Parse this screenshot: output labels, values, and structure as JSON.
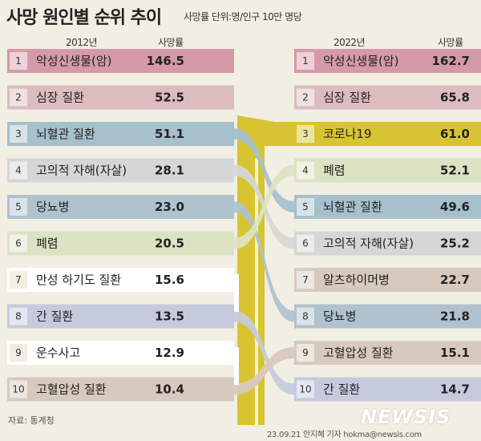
{
  "title": "사망 원인별 순위 추이",
  "subtitle": "사망률 단위:명/인구 10만 명당",
  "headers": {
    "left_year": "2012년",
    "left_value": "사망률",
    "right_year": "2022년",
    "right_value": "사망률"
  },
  "source": "자료: 통계청",
  "credit": "23.09.21 안지혜 기자 hokma@newsis.com",
  "logo": "NEWSIS",
  "chart_data": {
    "type": "slope",
    "value_label": "사망률",
    "unit": "명/인구 10만 명당",
    "left": {
      "year": "2012년",
      "rows": [
        {
          "rank": "1",
          "name": "악성신생물(암)",
          "value": "146.5",
          "color": "#d59aa8"
        },
        {
          "rank": "2",
          "name": "심장 질환",
          "value": "52.5",
          "color": "#dcbcbe"
        },
        {
          "rank": "3",
          "name": "뇌혈관 질환",
          "value": "51.1",
          "color": "#a6c0cc"
        },
        {
          "rank": "4",
          "name": "고의적 자해(자살)",
          "value": "28.1",
          "color": "#d6d6d6"
        },
        {
          "rank": "5",
          "name": "당뇨병",
          "value": "23.0",
          "color": "#afc2ce"
        },
        {
          "rank": "6",
          "name": "폐렴",
          "value": "20.5",
          "color": "#dce3c3"
        },
        {
          "rank": "7",
          "name": "만성 하기도 질환",
          "value": "15.6",
          "color": "#ffffff"
        },
        {
          "rank": "8",
          "name": "간 질환",
          "value": "13.5",
          "color": "#c5cbdd"
        },
        {
          "rank": "9",
          "name": "운수사고",
          "value": "12.9",
          "color": "#ffffff"
        },
        {
          "rank": "10",
          "name": "고혈압성 질환",
          "value": "10.4",
          "color": "#d7c9bd"
        }
      ]
    },
    "right": {
      "year": "2022년",
      "rows": [
        {
          "rank": "1",
          "name": "악성신생물(암)",
          "value": "162.7",
          "color": "#d59aa8"
        },
        {
          "rank": "2",
          "name": "심장 질환",
          "value": "65.8",
          "color": "#dcbcbe"
        },
        {
          "rank": "3",
          "name": "코로나19",
          "value": "61.0",
          "color": "#d8c430"
        },
        {
          "rank": "4",
          "name": "폐렴",
          "value": "52.1",
          "color": "#dce3c3"
        },
        {
          "rank": "5",
          "name": "뇌혈관 질환",
          "value": "49.6",
          "color": "#a6c0cc"
        },
        {
          "rank": "6",
          "name": "고의적 자해(자살)",
          "value": "25.2",
          "color": "#d6d6d6"
        },
        {
          "rank": "7",
          "name": "알츠하이머병",
          "value": "22.7",
          "color": "#d7c9bd"
        },
        {
          "rank": "8",
          "name": "당뇨병",
          "value": "21.8",
          "color": "#afc2ce"
        },
        {
          "rank": "9",
          "name": "고혈압성 질환",
          "value": "15.1",
          "color": "#d7c9bd"
        },
        {
          "rank": "10",
          "name": "간 질환",
          "value": "14.7",
          "color": "#c5cbdd"
        }
      ]
    },
    "links": [
      {
        "from": 1,
        "to": 1
      },
      {
        "from": 2,
        "to": 2
      },
      {
        "from": 3,
        "to": 5
      },
      {
        "from": 4,
        "to": 6
      },
      {
        "from": 5,
        "to": 8
      },
      {
        "from": 6,
        "to": 4
      },
      {
        "from": 7,
        "to": null
      },
      {
        "from": 8,
        "to": 10
      },
      {
        "from": 9,
        "to": null
      },
      {
        "from": 10,
        "to": 9
      },
      {
        "from": null,
        "to": 3
      },
      {
        "from": null,
        "to": 7
      }
    ]
  }
}
